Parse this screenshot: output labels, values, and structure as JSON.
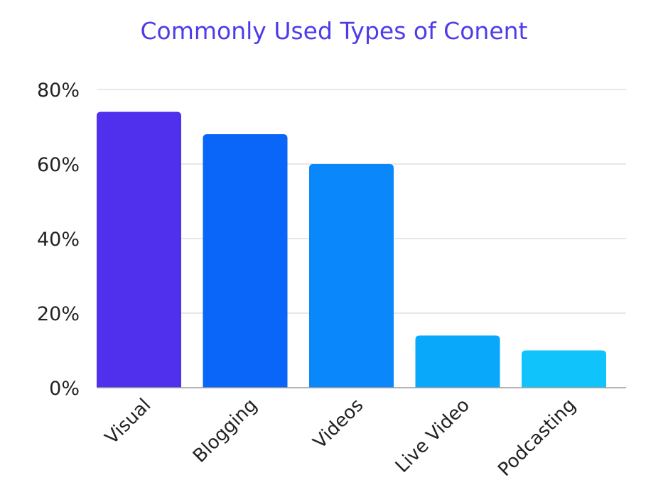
{
  "chart_data": {
    "type": "bar",
    "title": "Commonly Used Types of Conent",
    "title_color": "#4f3bea",
    "categories": [
      "Visual",
      "Blogging",
      "Videos",
      "Live Video",
      "Podcasting"
    ],
    "values": [
      74,
      68,
      60,
      14,
      10
    ],
    "bar_colors": [
      "#5030ec",
      "#0a66f8",
      "#0a88fb",
      "#0aa8fb",
      "#10c4fb"
    ],
    "yticks": [
      "0%",
      "20%",
      "40%",
      "60%",
      "80%"
    ],
    "ytick_values": [
      0,
      20,
      40,
      60,
      80
    ],
    "ylim": [
      0,
      80
    ],
    "xlabel": "",
    "ylabel": "",
    "grid": true,
    "legend": "none"
  }
}
